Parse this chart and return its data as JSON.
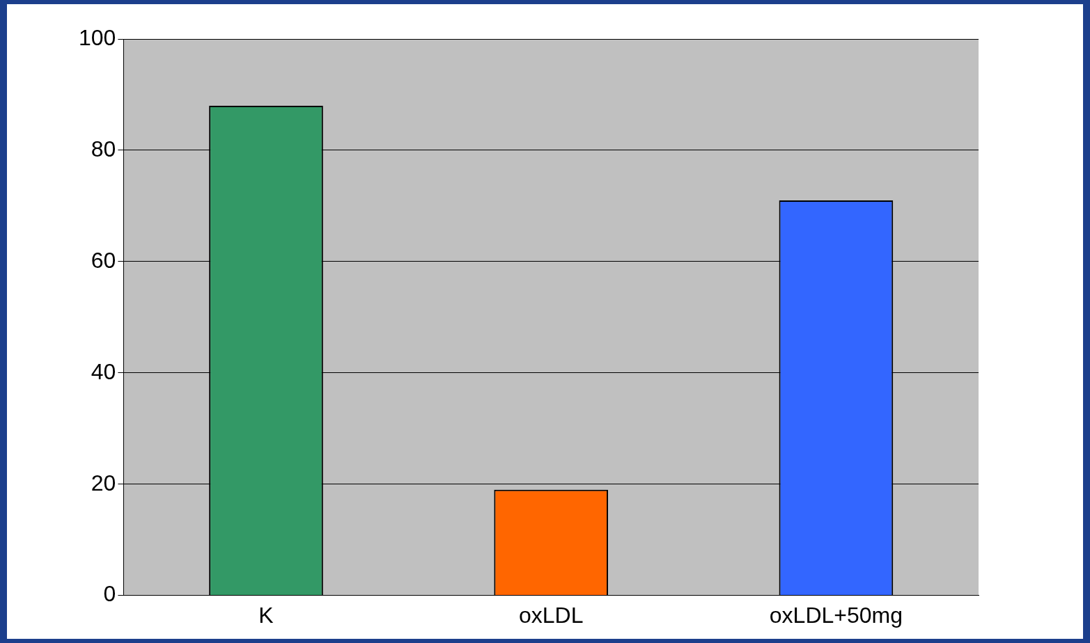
{
  "chart_data": {
    "type": "bar",
    "categories": [
      "K",
      "oxLDL",
      "oxLDL+50mg"
    ],
    "values": [
      88,
      19,
      71
    ],
    "colors": [
      "#339966",
      "#ff6600",
      "#3366ff"
    ],
    "ylim": [
      0,
      100
    ],
    "yticks": [
      0,
      20,
      40,
      60,
      80,
      100
    ],
    "grid": "y",
    "legend": false
  }
}
